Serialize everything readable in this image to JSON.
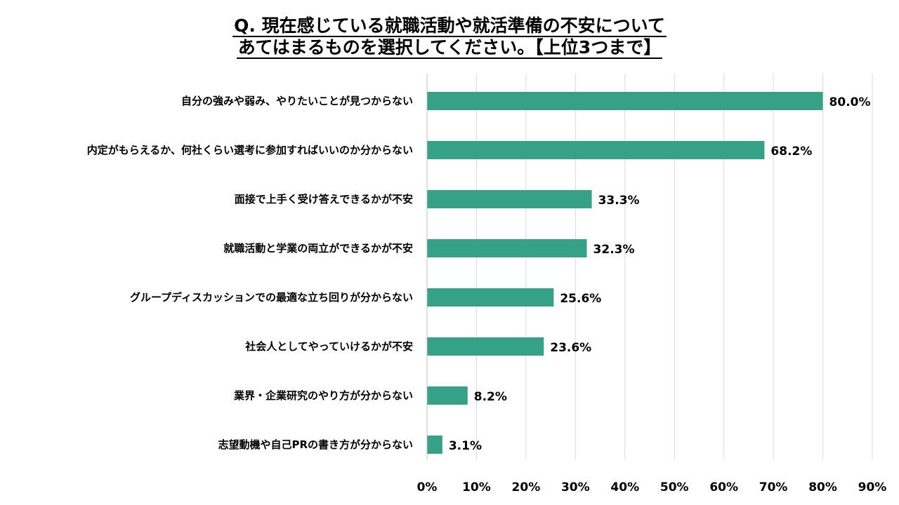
{
  "chart_data": {
    "type": "bar",
    "orientation": "horizontal",
    "title": [
      "Q. 現在感じている就職活動や就活準備の不安について",
      "あてはまるものを選択してください。【上位3つまで】"
    ],
    "categories": [
      "自分の強みや弱み、やりたいことが見つからない",
      "内定がもらえるか、何社くらい選考に参加すればいいのか分からない",
      "面接で上手く受け答えできるかが不安",
      "就職活動と学業の両立ができるかが不安",
      "グループディスカッションでの最適な立ち回りが分からない",
      "社会人としてやっていけるかが不安",
      "業界・企業研究のやり方が分からない",
      "志望動機や自己PRの書き方が分からない"
    ],
    "values": [
      80.0,
      68.2,
      33.3,
      32.3,
      25.6,
      23.6,
      8.2,
      3.1
    ],
    "data_labels": [
      "80.0%",
      "68.2%",
      "33.3%",
      "32.3%",
      "25.6%",
      "23.6%",
      "8.2%",
      "3.1%"
    ],
    "xlim": [
      0,
      90
    ],
    "xticks": [
      "0%",
      "10%",
      "20%",
      "30%",
      "40%",
      "50%",
      "60%",
      "70%",
      "80%",
      "90%"
    ],
    "grid": true,
    "legend": "none",
    "bar_color": "#35a287"
  }
}
